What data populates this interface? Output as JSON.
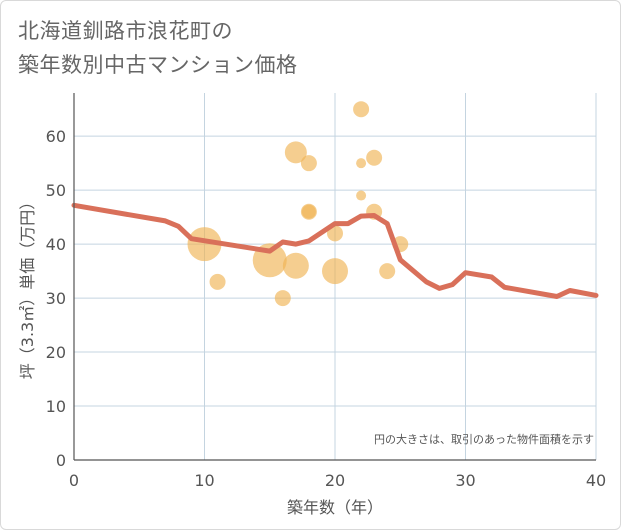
{
  "title_line1": "北海道釧路市浪花町の",
  "title_line2": "築年数別中古マンション価格",
  "chart_data": {
    "type": "scatter+line",
    "xlabel": "築年数（年）",
    "ylabel": "坪（3.3㎡）単価（万円）",
    "xlim": [
      0,
      40
    ],
    "ylim": [
      0,
      68
    ],
    "xticks": [
      0,
      10,
      20,
      30,
      40
    ],
    "yticks": [
      0,
      10,
      20,
      30,
      40,
      50,
      60
    ],
    "grid": true,
    "note": "円の大きさは、取引のあった物件面積を示す",
    "line_color": "#d9705a",
    "bubble_color": "#f0b455",
    "trend_line": [
      {
        "x": 0,
        "y": 47.2
      },
      {
        "x": 7,
        "y": 44.3
      },
      {
        "x": 8,
        "y": 43.3
      },
      {
        "x": 9,
        "y": 41
      },
      {
        "x": 15,
        "y": 38.7
      },
      {
        "x": 16,
        "y": 40.4
      },
      {
        "x": 17,
        "y": 40
      },
      {
        "x": 18,
        "y": 40.6
      },
      {
        "x": 20,
        "y": 43.8
      },
      {
        "x": 21,
        "y": 43.8
      },
      {
        "x": 22,
        "y": 45.2
      },
      {
        "x": 23,
        "y": 45.3
      },
      {
        "x": 24,
        "y": 43.8
      },
      {
        "x": 25,
        "y": 37.1
      },
      {
        "x": 27,
        "y": 33
      },
      {
        "x": 28,
        "y": 31.8
      },
      {
        "x": 29,
        "y": 32.5
      },
      {
        "x": 30,
        "y": 34.7
      },
      {
        "x": 32,
        "y": 33.9
      },
      {
        "x": 33,
        "y": 32
      },
      {
        "x": 37,
        "y": 30.3
      },
      {
        "x": 38,
        "y": 31.4
      },
      {
        "x": 40,
        "y": 30.5
      }
    ],
    "bubbles": [
      {
        "x": 10,
        "y": 40,
        "size": 17
      },
      {
        "x": 11,
        "y": 33,
        "size": 8
      },
      {
        "x": 15,
        "y": 37,
        "size": 17
      },
      {
        "x": 16,
        "y": 30,
        "size": 8
      },
      {
        "x": 17,
        "y": 36,
        "size": 13
      },
      {
        "x": 17,
        "y": 57,
        "size": 11
      },
      {
        "x": 18,
        "y": 55,
        "size": 8
      },
      {
        "x": 18,
        "y": 46,
        "size": 8
      },
      {
        "x": 18,
        "y": 46,
        "size": 7
      },
      {
        "x": 20,
        "y": 35,
        "size": 13
      },
      {
        "x": 20,
        "y": 42,
        "size": 8
      },
      {
        "x": 22,
        "y": 65,
        "size": 8
      },
      {
        "x": 22,
        "y": 55,
        "size": 5
      },
      {
        "x": 22,
        "y": 49,
        "size": 5
      },
      {
        "x": 23,
        "y": 56,
        "size": 8
      },
      {
        "x": 23,
        "y": 46,
        "size": 8
      },
      {
        "x": 24,
        "y": 35,
        "size": 8
      },
      {
        "x": 25,
        "y": 40,
        "size": 8
      }
    ]
  }
}
